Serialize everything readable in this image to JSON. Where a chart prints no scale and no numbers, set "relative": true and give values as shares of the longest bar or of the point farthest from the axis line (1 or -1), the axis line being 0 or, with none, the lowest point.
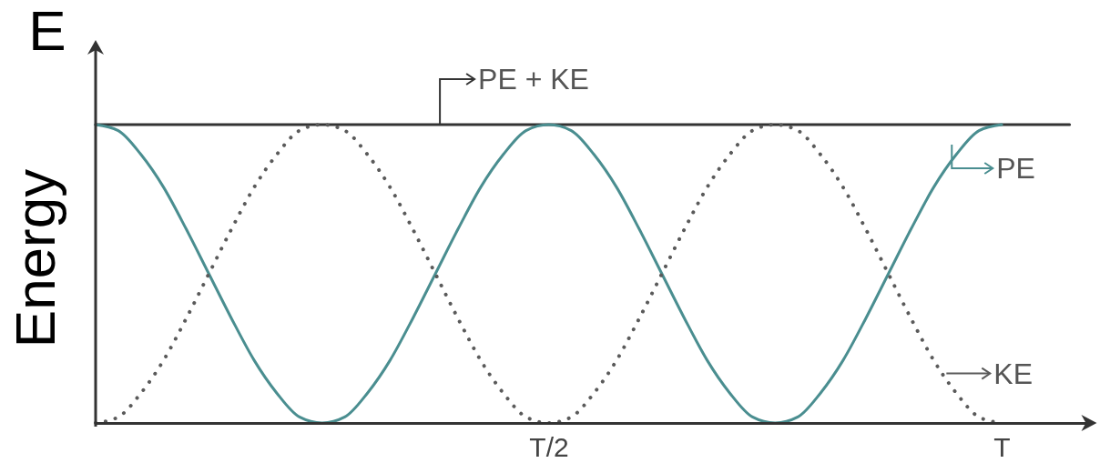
{
  "chart_data": {
    "type": "line",
    "relative": true,
    "ylabel": "Energy",
    "annotations": [
      "E"
    ],
    "legend": "top right",
    "categories": [
      null,
      null,
      null,
      null,
      null,
      null,
      null,
      null,
      null,
      null,
      null,
      null,
      null,
      null,
      null,
      null,
      null,
      null,
      null,
      null,
      "T/2",
      null,
      null,
      null,
      null,
      null,
      null,
      null,
      null,
      null,
      null,
      null,
      null,
      null,
      null,
      null,
      null,
      null,
      null,
      null,
      "T",
      null,
      null,
      null,
      null
    ],
    "series": [
      {
        "name": "PE + KE",
        "color": "#333333",
        "line_style": "solid",
        "values": [
          1,
          1,
          1,
          1,
          1,
          1,
          1,
          1,
          1,
          1,
          1,
          1,
          1,
          1,
          1,
          1,
          1,
          1,
          1,
          1,
          1,
          1,
          1,
          1,
          1,
          1,
          1,
          1,
          1,
          1,
          1,
          1,
          1,
          1,
          1,
          1,
          1,
          1,
          1,
          1,
          1,
          1,
          1,
          1,
          null
        ]
      },
      {
        "name": "PE",
        "color": "#4a8e90",
        "line_style": "solid",
        "values": [
          1,
          0.98,
          0.9,
          0.79,
          0.65,
          0.5,
          0.35,
          0.21,
          0.1,
          0.02,
          0,
          0.02,
          0.1,
          0.21,
          0.35,
          0.5,
          0.65,
          0.79,
          0.9,
          0.98,
          1,
          0.98,
          0.9,
          0.79,
          0.65,
          0.5,
          0.35,
          0.21,
          0.1,
          0.02,
          0,
          0.02,
          0.1,
          0.21,
          0.35,
          0.5,
          0.65,
          0.79,
          0.9,
          0.98,
          1,
          null,
          null,
          null,
          null
        ]
      },
      {
        "name": "KE",
        "color": "#5a5a5a",
        "line_style": "dotted",
        "values": [
          0,
          0.02,
          0.1,
          0.21,
          0.35,
          0.5,
          0.65,
          0.79,
          0.9,
          0.98,
          1,
          0.98,
          0.9,
          0.79,
          0.65,
          0.5,
          0.35,
          0.21,
          0.1,
          0.02,
          0,
          0.02,
          0.1,
          0.21,
          0.35,
          0.5,
          0.65,
          0.79,
          0.9,
          0.98,
          1,
          0.98,
          0.9,
          0.79,
          0.65,
          0.5,
          0.35,
          0.21,
          0.1,
          0.02,
          0,
          null,
          null,
          null,
          null
        ]
      }
    ]
  }
}
